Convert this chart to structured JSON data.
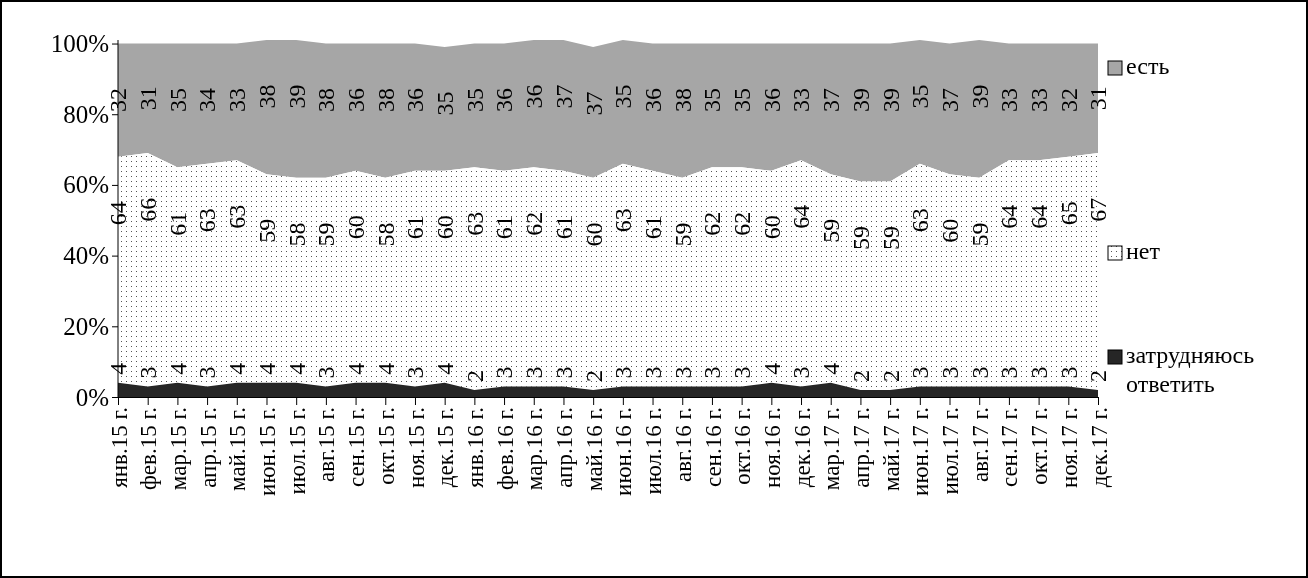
{
  "chart_data": {
    "type": "area",
    "stacked": true,
    "data_labels": true,
    "legend": "right",
    "categories": [
      "янв.15 г.",
      "фев.15 г.",
      "мар.15 г.",
      "апр.15 г.",
      "май.15 г.",
      "июн.15 г.",
      "июл.15 г.",
      "авг.15 г.",
      "сен.15 г.",
      "окт.15 г.",
      "ноя.15 г.",
      "дек.15 г.",
      "янв.16 г.",
      "фев.16 г.",
      "мар.16 г.",
      "апр.16 г.",
      "май.16 г.",
      "июн.16 г.",
      "июл.16 г.",
      "авг.16 г.",
      "сен.16 г.",
      "окт.16 г.",
      "ноя.16 г.",
      "дек.16 г.",
      "мар.17 г.",
      "апр.17 г.",
      "май.17 г.",
      "июн.17 г.",
      "июл.17 г.",
      "авг.17 г.",
      "сен.17 г.",
      "окт.17 г.",
      "ноя.17 г.",
      "дек.17 г."
    ],
    "ylim": [
      0,
      101
    ],
    "yticks": [
      {
        "value": 0,
        "label": "0%"
      },
      {
        "value": 20,
        "label": "20%"
      },
      {
        "value": 40,
        "label": "40%"
      },
      {
        "value": 60,
        "label": "60%"
      },
      {
        "value": 80,
        "label": "80%"
      },
      {
        "value": 100,
        "label": "100%"
      }
    ],
    "series": [
      {
        "name": "затрудняюсь ответить",
        "color": "#262626",
        "values": [
          4,
          3,
          4,
          3,
          4,
          4,
          4,
          3,
          4,
          4,
          3,
          4,
          2,
          3,
          3,
          3,
          2,
          3,
          3,
          3,
          3,
          3,
          4,
          3,
          4,
          2,
          2,
          3,
          3,
          3,
          3,
          3,
          3,
          2
        ]
      },
      {
        "name": "нет",
        "color": "#ffffff",
        "values": [
          64,
          66,
          61,
          63,
          63,
          59,
          58,
          59,
          60,
          58,
          61,
          60,
          63,
          61,
          62,
          61,
          60,
          63,
          61,
          59,
          62,
          62,
          60,
          64,
          59,
          59,
          59,
          63,
          60,
          59,
          64,
          64,
          65,
          67
        ]
      },
      {
        "name": "есть",
        "color": "#a6a6a6",
        "values": [
          32,
          31,
          35,
          34,
          33,
          38,
          39,
          38,
          36,
          38,
          36,
          35,
          35,
          36,
          36,
          37,
          37,
          35,
          36,
          38,
          35,
          35,
          36,
          33,
          37,
          39,
          39,
          35,
          37,
          39,
          33,
          33,
          32,
          31
        ]
      }
    ]
  }
}
